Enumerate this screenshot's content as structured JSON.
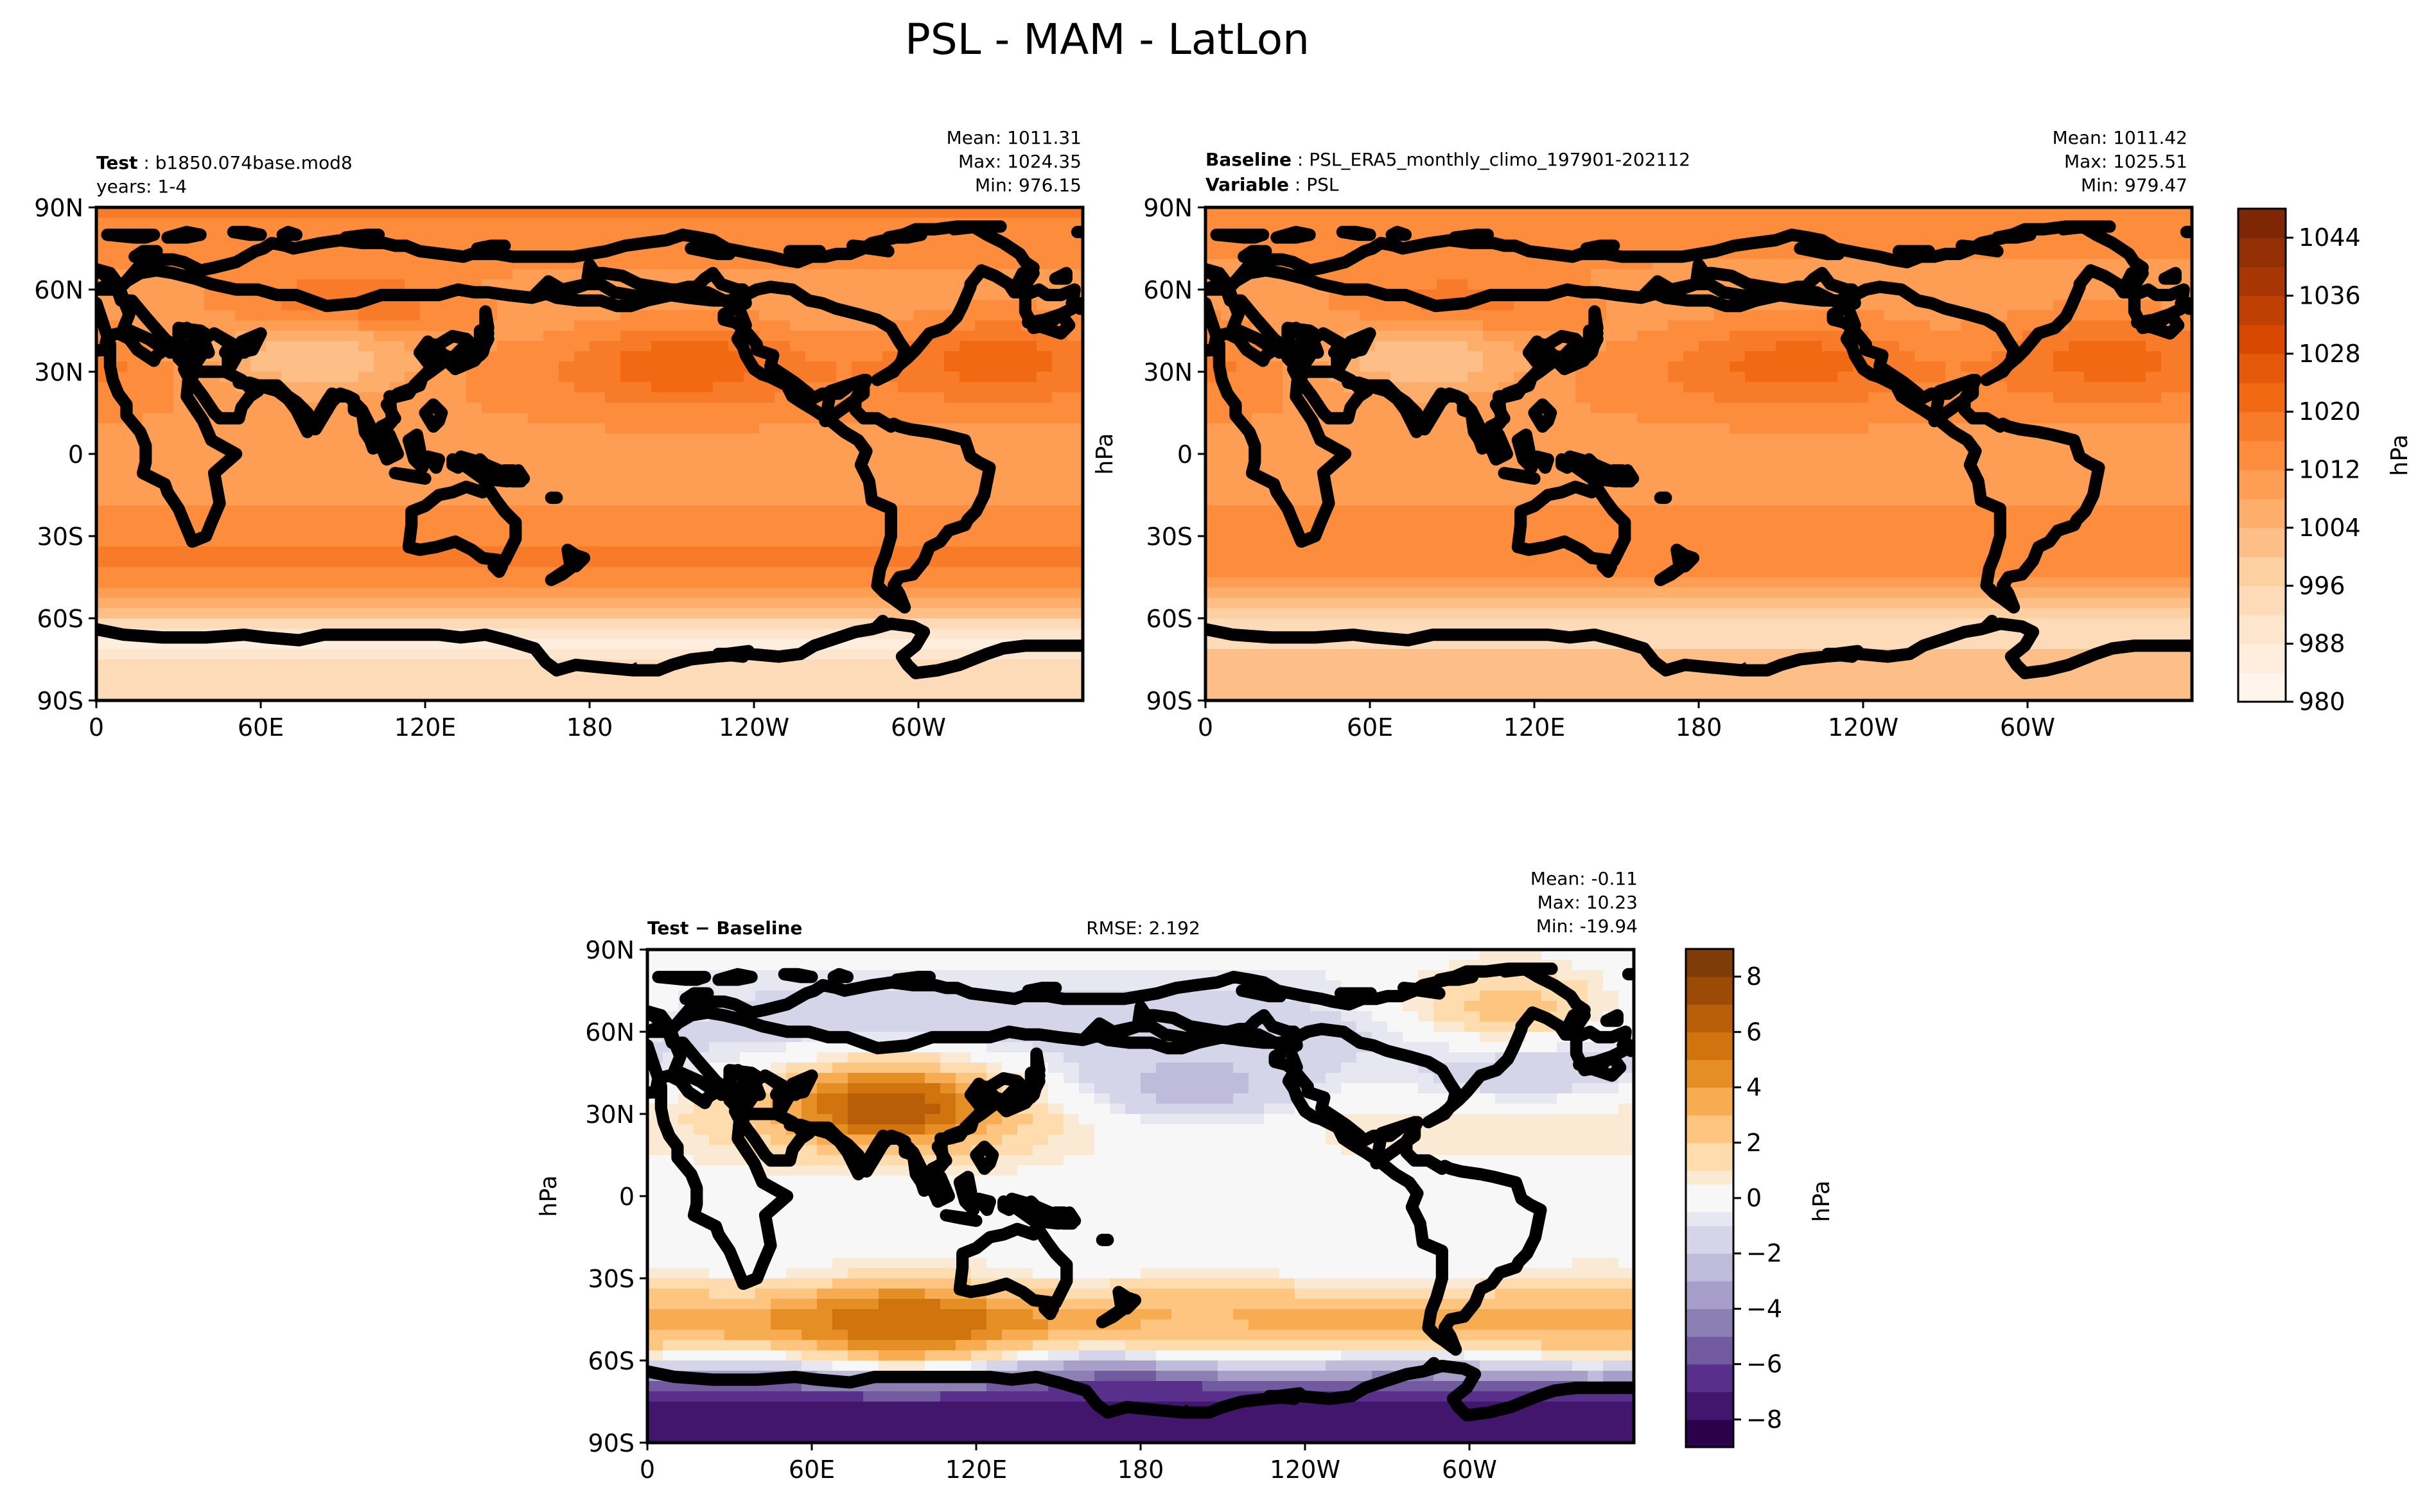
{
  "figure_title": "PSL - MAM - LatLon",
  "colors": {
    "test_baseline_palette": [
      "#fff5eb",
      "#fee6ce",
      "#fdd0a2",
      "#fdae6b",
      "#fd8d3c",
      "#f16913",
      "#d94801",
      "#a63603",
      "#7f2704"
    ],
    "difference_palette": [
      "#2d004b",
      "#542788",
      "#8073ac",
      "#b2abd2",
      "#d8daeb",
      "#f7f7f7",
      "#fee0b6",
      "#fdb863",
      "#e08214",
      "#b35806",
      "#7f3b08"
    ],
    "missing": "#ffffff",
    "coastline": "#000000"
  },
  "chart_data": [
    {
      "type": "heatmap",
      "panel": "test",
      "label_name": "Test",
      "label_value": "b1850.074base.mod8",
      "label_line2": "years: 1-4",
      "stats": [
        "Mean: 1011.31",
        "Max: 1024.35",
        "Min: 976.15"
      ],
      "x_ticks": [
        "0",
        "60E",
        "120E",
        "180",
        "120W",
        "60W"
      ],
      "y_ticks": [
        "90N",
        "60N",
        "30N",
        "0",
        "30S",
        "60S",
        "90S"
      ],
      "xlim": [
        0,
        360
      ],
      "ylim": [
        -90,
        90
      ],
      "approx_field": {
        "zonal_mean_profile_hPa": {
          "lat": [
            -90,
            -75,
            -68,
            -60,
            -50,
            -40,
            -30,
            -15,
            0,
            15,
            30,
            45,
            60,
            75,
            90
          ],
          "value": [
            993,
            993,
            984,
            998,
            1010,
            1018,
            1015,
            1011,
            1010,
            1012,
            1014,
            1009,
            1010,
            1014,
            1017
          ]
        },
        "features": [
          {
            "name": "north-pacific-high",
            "lon": 215,
            "lat": 33,
            "value": 1023
          },
          {
            "name": "north-atlantic-high",
            "lon": 330,
            "lat": 35,
            "value": 1022
          },
          {
            "name": "siberian-high",
            "lon": 90,
            "lat": 50,
            "value": 1024
          },
          {
            "name": "tibetan-low",
            "lon": 80,
            "lat": 35,
            "value": 1000
          }
        ]
      }
    },
    {
      "type": "heatmap",
      "panel": "baseline",
      "label_name": "Baseline",
      "label_value": "PSL_ERA5_monthly_climo_197901-202112",
      "label2_name": "Variable",
      "label2_value": "PSL",
      "stats": [
        "Mean: 1011.42",
        "Max: 1025.51",
        "Min: 979.47"
      ],
      "x_ticks": [
        "0",
        "60E",
        "120E",
        "180",
        "120W",
        "60W"
      ],
      "y_ticks": [
        "90N",
        "60N",
        "30N",
        "0",
        "30S",
        "60S",
        "90S"
      ],
      "ylabel": "hPa",
      "xlim": [
        0,
        360
      ],
      "ylim": [
        -90,
        90
      ],
      "approx_field": {
        "zonal_mean_profile_hPa": {
          "lat": [
            -90,
            -75,
            -68,
            -60,
            -50,
            -40,
            -30,
            -15,
            0,
            15,
            30,
            45,
            60,
            75,
            90
          ],
          "value": [
            1000,
            1004,
            992,
            996,
            1008,
            1016,
            1015,
            1011,
            1010,
            1012,
            1014,
            1010,
            1010,
            1013,
            1016
          ]
        },
        "features": [
          {
            "name": "north-pacific-high",
            "lon": 215,
            "lat": 33,
            "value": 1022
          },
          {
            "name": "north-atlantic-high",
            "lon": 330,
            "lat": 35,
            "value": 1022
          },
          {
            "name": "siberian-high",
            "lon": 90,
            "lat": 50,
            "value": 1022
          },
          {
            "name": "tibetan-low",
            "lon": 80,
            "lat": 35,
            "value": 1000
          }
        ]
      },
      "colorbar": {
        "levels": [
          980,
          984,
          988,
          992,
          996,
          1000,
          1004,
          1008,
          1012,
          1016,
          1020,
          1024,
          1028,
          1032,
          1036,
          1040,
          1044,
          1048
        ],
        "tick_labels": [
          "980",
          "988",
          "996",
          "1004",
          "1012",
          "1020",
          "1028",
          "1036",
          "1044"
        ],
        "tick_values": [
          980,
          988,
          996,
          1004,
          1012,
          1020,
          1028,
          1036,
          1044
        ],
        "label": "hPa"
      }
    },
    {
      "type": "heatmap",
      "panel": "difference",
      "label_name": "Test − Baseline",
      "rmse": "RMSE: 2.192",
      "stats": [
        "Mean: -0.11",
        "Max: 10.23",
        "Min: -19.94"
      ],
      "x_ticks": [
        "0",
        "60E",
        "120E",
        "180",
        "120W",
        "60W"
      ],
      "y_ticks": [
        "90N",
        "60N",
        "30N",
        "0",
        "30S",
        "60S",
        "90S"
      ],
      "ylabel": "hPa",
      "xlim": [
        0,
        360
      ],
      "ylim": [
        -90,
        90
      ],
      "approx_field": {
        "zonal_mean_profile_hPa": {
          "lat": [
            -90,
            -80,
            -70,
            -60,
            -50,
            -45,
            -38,
            -30,
            -15,
            0,
            15,
            30,
            45,
            60,
            75,
            90
          ],
          "value": [
            -7,
            -8,
            -6,
            -2,
            3,
            4,
            2,
            0,
            0,
            0,
            0.5,
            1,
            -0.5,
            -1.5,
            -1,
            0
          ]
        },
        "features": [
          {
            "name": "south-indian-ocean-positive",
            "lon": 95,
            "lat": -47,
            "value": 6
          },
          {
            "name": "south-pacific-positive",
            "lon": 205,
            "lat": -47,
            "value": 3
          },
          {
            "name": "south-atlantic-positive",
            "lon": 345,
            "lat": -45,
            "value": 3
          },
          {
            "name": "tibet-positive",
            "lon": 88,
            "lat": 33,
            "value": 7
          },
          {
            "name": "north-pacific-negative",
            "lon": 200,
            "lat": 40,
            "value": -2.5
          },
          {
            "name": "north-atlantic-negative",
            "lon": 320,
            "lat": 50,
            "value": -2
          },
          {
            "name": "antarctic-negative",
            "lon": 180,
            "lat": -78,
            "value": -7
          },
          {
            "name": "greenland-positive",
            "lon": 315,
            "lat": 70,
            "value": 2.5
          }
        ]
      },
      "colorbar": {
        "levels": [
          -9,
          -8,
          -7,
          -6,
          -5,
          -4,
          -3,
          -2,
          -1,
          -0.5,
          0.5,
          1,
          2,
          3,
          4,
          5,
          6,
          7,
          8,
          9
        ],
        "tick_labels": [
          "−8",
          "−6",
          "−4",
          "−2",
          "0",
          "2",
          "4",
          "6",
          "8"
        ],
        "tick_values": [
          -8,
          -6,
          -4,
          -2,
          0,
          2,
          4,
          6,
          8
        ],
        "label": "hPa"
      }
    }
  ]
}
